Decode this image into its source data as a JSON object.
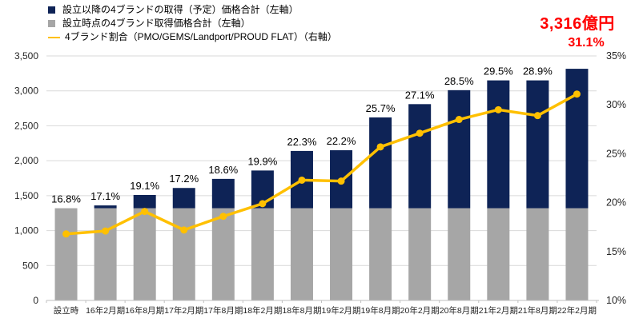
{
  "chart_data": {
    "type": "bar",
    "subtype": "stacked-bars-with-line",
    "title": "",
    "categories": [
      "設立時",
      "16年2月期",
      "16年8月期",
      "17年2月期",
      "17年8月期",
      "18年2月期",
      "18年8月期",
      "19年2月期",
      "19年8月期",
      "20年2月期",
      "20年8月期",
      "21年2月期",
      "21年8月期",
      "22年2月期"
    ],
    "series": [
      {
        "name": "設立以降の4ブランドの取得（予定）価格合計（左軸）",
        "type": "bar-top-segment",
        "axis": "left",
        "color_key": "navy",
        "values": [
          0,
          40,
          190,
          290,
          420,
          540,
          820,
          830,
          1300,
          1490,
          1690,
          1830,
          1830,
          1996
        ]
      },
      {
        "name": "設立時点の4ブランド取得価格合計（左軸）",
        "type": "bar-base-segment",
        "axis": "left",
        "color_key": "gray",
        "values": [
          1320,
          1320,
          1320,
          1320,
          1320,
          1320,
          1320,
          1320,
          1320,
          1320,
          1320,
          1320,
          1320,
          1320
        ]
      },
      {
        "name": "4ブランド割合（PMO/GEMS/Landport/PROUD FLAT）（右軸）",
        "type": "line",
        "axis": "right",
        "color_key": "gold",
        "values": [
          16.8,
          17.1,
          19.1,
          17.2,
          18.6,
          19.9,
          22.3,
          22.2,
          25.7,
          27.1,
          28.5,
          29.5,
          28.9,
          31.1
        ],
        "labels": [
          "16.8%",
          "17.1%",
          "19.1%",
          "17.2%",
          "18.6%",
          "19.9%",
          "22.3%",
          "22.2%",
          "25.7%",
          "27.1%",
          "28.5%",
          "29.5%",
          "28.9%",
          "31.1%"
        ]
      }
    ],
    "bar_totals": [
      1320,
      1360,
      1510,
      1610,
      1740,
      1860,
      2140,
      2150,
      2620,
      2810,
      3010,
      3150,
      3150,
      3316
    ],
    "left_axis": {
      "min": 0,
      "max": 3500,
      "step": 500,
      "ticks": [
        "0",
        "500",
        "1,000",
        "1,500",
        "2,000",
        "2,500",
        "3,000",
        "3,500"
      ]
    },
    "right_axis": {
      "min": 10,
      "max": 35,
      "step": 5,
      "ticks": [
        "10%",
        "15%",
        "20%",
        "25%",
        "30%",
        "35%"
      ]
    },
    "annotation": {
      "value_label": "3,316億円",
      "pct_label": "31.1%"
    },
    "legend_position": "top-left",
    "grid": true,
    "colors": {
      "navy": "#0E2356",
      "gray": "#A6A6A6",
      "gold": "#FFC000",
      "red": "#FF0000",
      "grid": "#D9D9D9",
      "axis": "#BFBFBF",
      "text": "#000000",
      "tick_text": "#262626"
    }
  }
}
